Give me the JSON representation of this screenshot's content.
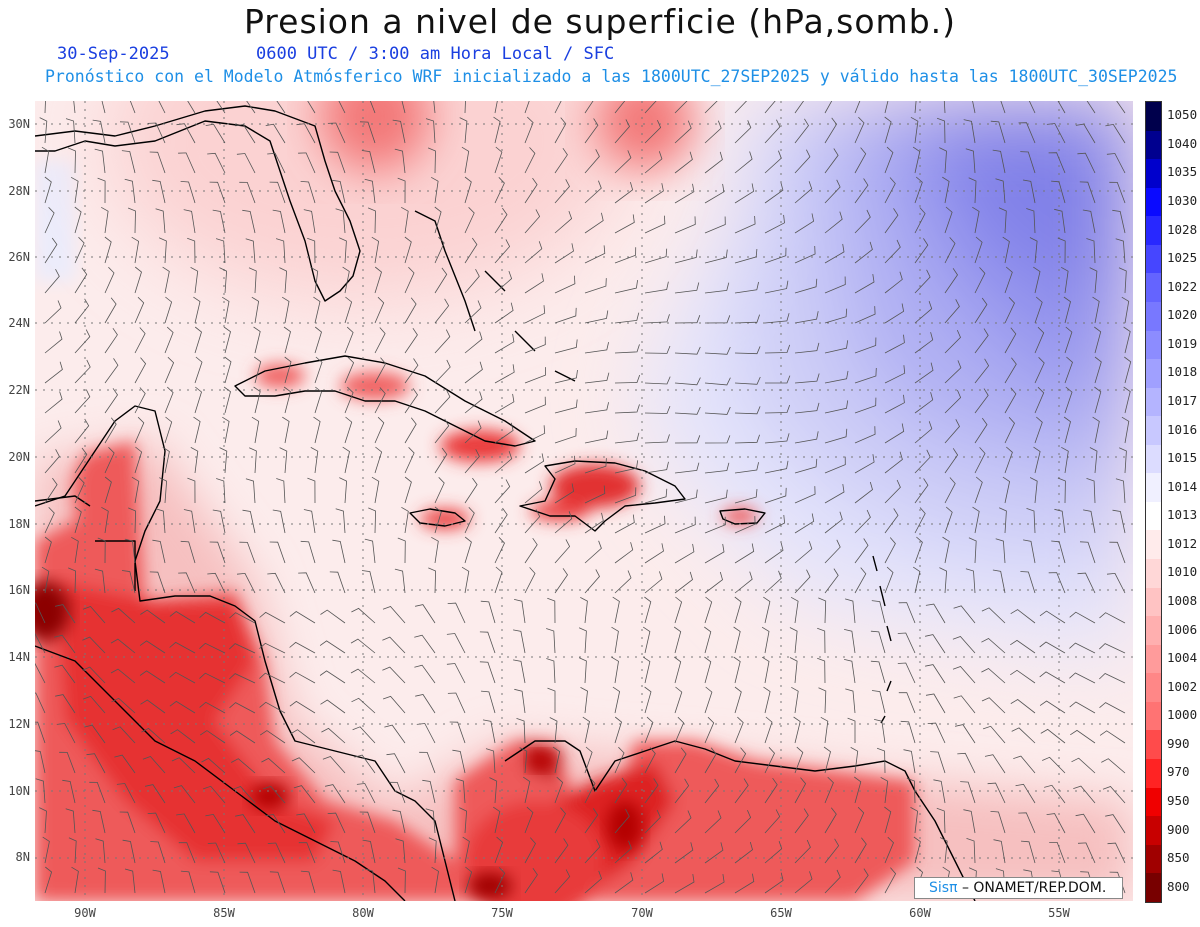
{
  "header": {
    "title": "Presion a nivel de superficie (hPa,somb.)",
    "date": "30-Sep-2025",
    "time_info": "0600 UTC / 3:00 am Hora Local / SFC",
    "model_info": "Pronóstico con el Modelo Atmósferico WRF inicializado a las 1800UTC_27SEP2025 y válido hasta las  1800UTC_30SEP2025"
  },
  "axes": {
    "lat_labels": [
      "30N",
      "28N",
      "26N",
      "24N",
      "22N",
      "20N",
      "18N",
      "16N",
      "14N",
      "12N",
      "10N",
      "8N"
    ],
    "lon_labels": [
      "90W",
      "85W",
      "80W",
      "75W",
      "70W",
      "65W",
      "60W",
      "55W"
    ]
  },
  "colorbar": {
    "levels": [
      "1050",
      "1040",
      "1035",
      "1030",
      "1028",
      "1025",
      "1022",
      "1020",
      "1019",
      "1018",
      "1017",
      "1016",
      "1015",
      "1014",
      "1013",
      "1012",
      "1010",
      "1008",
      "1006",
      "1004",
      "1002",
      "1000",
      "990",
      "970",
      "950",
      "900",
      "850",
      "800"
    ],
    "colors": [
      "#00004c",
      "#00008f",
      "#0000cc",
      "#0a0aff",
      "#2828ff",
      "#4646ff",
      "#6464ff",
      "#7878ff",
      "#8c8cff",
      "#a0a0ff",
      "#b4b4ff",
      "#c8c8ff",
      "#dcdcff",
      "#f0f0ff",
      "#ffffff",
      "#ffebeb",
      "#ffd7d7",
      "#ffc3c3",
      "#ffafaf",
      "#ff9b9b",
      "#ff8787",
      "#ff7373",
      "#ff4b4b",
      "#ff2323",
      "#f00000",
      "#c80000",
      "#a00000",
      "#780000"
    ]
  },
  "credit": {
    "brand": "Sisπ",
    "text": "– ONAMET/REP.DOM."
  },
  "colors": {
    "background": "#fdf1f1",
    "high_pressure": "#8080ff",
    "low_pressure": "#e00000",
    "coastline": "#000000",
    "wind_barbs": "#555555"
  }
}
